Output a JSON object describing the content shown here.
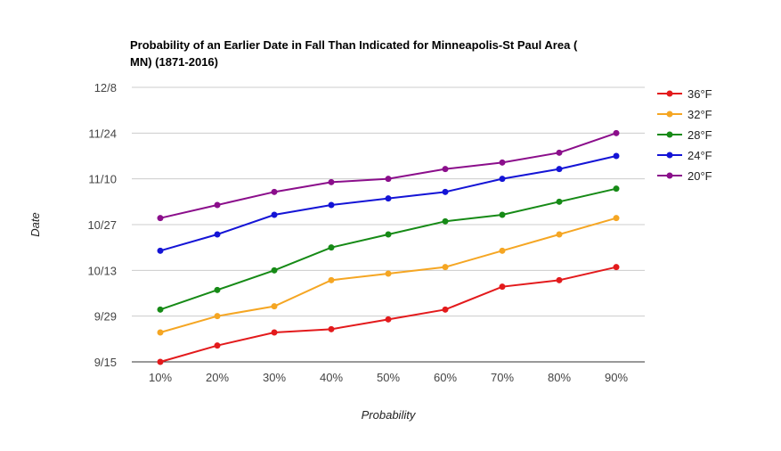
{
  "chart_data": {
    "type": "line",
    "title_lines": [
      "Probability of an Earlier Date in Fall Than Indicated for Minneapolis-St Paul Area (",
      "MN) (1871-2016)"
    ],
    "xlabel": "Probability",
    "ylabel": "Date",
    "categories": [
      "10%",
      "20%",
      "30%",
      "40%",
      "50%",
      "60%",
      "70%",
      "80%",
      "90%"
    ],
    "y_ticks": [
      "9/15",
      "9/29",
      "10/13",
      "10/27",
      "11/10",
      "11/24",
      "12/8"
    ],
    "ylim": [
      "9/15",
      "12/8"
    ],
    "grid": true,
    "legend_position": "right",
    "series": [
      {
        "name": "36°F",
        "color": "#e31a1c",
        "values": [
          "9/15",
          "9/20",
          "9/24",
          "9/25",
          "9/28",
          "10/1",
          "10/8",
          "10/10",
          "10/14"
        ]
      },
      {
        "name": "32°F",
        "color": "#f5a623",
        "values": [
          "9/24",
          "9/29",
          "10/2",
          "10/10",
          "10/12",
          "10/14",
          "10/19",
          "10/24",
          "10/29"
        ]
      },
      {
        "name": "28°F",
        "color": "#168a16",
        "values": [
          "10/1",
          "10/7",
          "10/13",
          "10/20",
          "10/24",
          "10/28",
          "10/30",
          "11/3",
          "11/7"
        ]
      },
      {
        "name": "24°F",
        "color": "#1414d6",
        "values": [
          "10/19",
          "10/24",
          "10/30",
          "11/2",
          "11/4",
          "11/6",
          "11/10",
          "11/13",
          "11/17"
        ]
      },
      {
        "name": "20°F",
        "color": "#8b0e8b",
        "values": [
          "10/29",
          "11/2",
          "11/6",
          "11/9",
          "11/10",
          "11/13",
          "11/15",
          "11/18",
          "11/24"
        ]
      }
    ]
  }
}
